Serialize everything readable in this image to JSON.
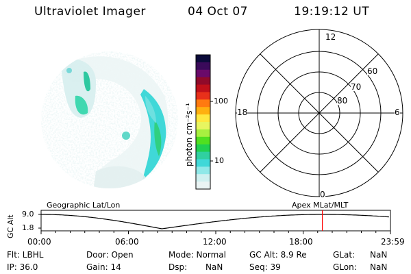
{
  "header": {
    "instrument": "Ultraviolet Imager",
    "date": "04 Oct 07",
    "time": "19:19:12 UT"
  },
  "colorbar": {
    "label": "photon cm⁻²s⁻¹",
    "ticks": [
      "100",
      "10"
    ],
    "colors": [
      "#0b0b3a",
      "#3a0a5a",
      "#6a0a6a",
      "#900a2a",
      "#c0101a",
      "#e8301a",
      "#ff7a10",
      "#ffb010",
      "#ffe840",
      "#e8f560",
      "#a8f040",
      "#50e020",
      "#20d050",
      "#30d0a0",
      "#40d8d8",
      "#90e8e8",
      "#d0f0f0",
      "#eaf4f4"
    ]
  },
  "polar_plot": {
    "mlt_labels": {
      "top": "12",
      "left": "18",
      "right": "6",
      "bottom": "0"
    },
    "lat_labels": [
      "60",
      "70",
      "80"
    ]
  },
  "timeline": {
    "axis_label": "GC Alt",
    "y_ticks": [
      "9.0",
      "1.8"
    ],
    "left_title": "Geographic Lat/Lon",
    "right_title": "Apex MLat/MLT",
    "x_ticks": [
      "00:00",
      "06:00",
      "12:00",
      "18:00",
      "23:59"
    ],
    "current_marker_hours": 19.32,
    "marker_color": "#ff0000"
  },
  "status": {
    "flt": "Flt: LBHL",
    "ip": "IP: 36.0",
    "door": "Door: Open",
    "gain": "Gain: 14",
    "mode": "Mode: Normal",
    "dsp_label": "Dsp:",
    "dsp_value": "NaN",
    "gc_alt": "GC Alt: 8.9 Re",
    "seq": "Seq: 39",
    "glat_label": "GLat:",
    "glat_value": "NaN",
    "glon_label": "GLon:",
    "glon_value": "NaN"
  }
}
